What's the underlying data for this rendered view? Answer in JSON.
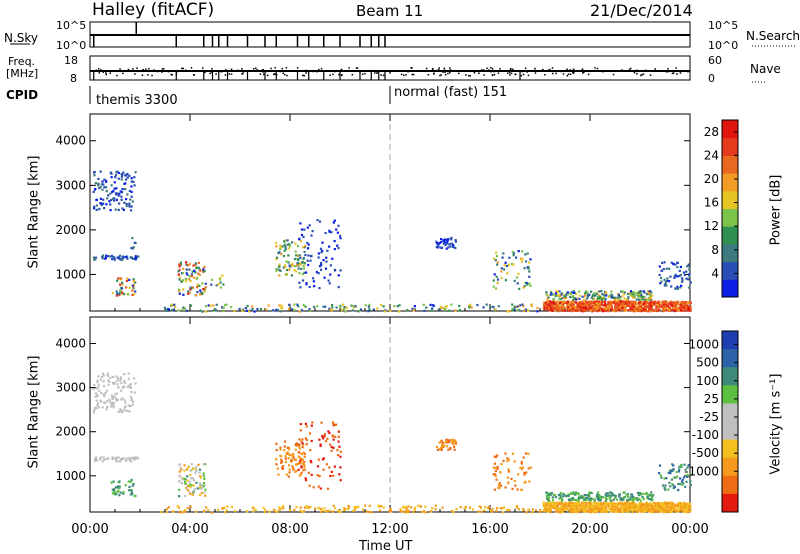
{
  "header": {
    "station": "Halley (fitACF)",
    "beam": "Beam 11",
    "date": "21/Dec/2014"
  },
  "nsky_panel": {
    "left_label": "N.Sky",
    "left_tick_top": "10^5",
    "left_tick_bottom": "10^0",
    "right_label": "N.Search",
    "right_tick_top": "10^5",
    "right_tick_bottom": "10^0"
  },
  "freq_panel": {
    "left_label": "Freq.",
    "left_unit": "[MHz]",
    "left_tick_top": "18",
    "left_tick_bottom": "8",
    "right_label": "Nave",
    "right_tick_top": "60",
    "right_tick_bottom": "0"
  },
  "cpid": {
    "label": "CPID",
    "modes": [
      {
        "name": "themis 3300",
        "start_hour": 0
      },
      {
        "name": "normal (fast) 151",
        "start_hour": 12
      }
    ]
  },
  "x_axis": {
    "label": "Time UT",
    "ticks": [
      "00:00",
      "04:00",
      "08:00",
      "12:00",
      "16:00",
      "20:00",
      "00:00"
    ],
    "tick_hours": [
      0,
      4,
      8,
      12,
      16,
      20,
      24
    ]
  },
  "chart_data": [
    {
      "type": "heatmap",
      "ylabel": "Slant Range [km]",
      "xlim_hours": [
        0,
        24
      ],
      "ylim_km": [
        180,
        4600
      ],
      "yticks": [
        1000,
        2000,
        3000,
        4000
      ],
      "colorbar": {
        "label": "Power [dB]",
        "ticks": [
          "4",
          "8",
          "12",
          "16",
          "20",
          "24",
          "28"
        ],
        "colors": [
          "#0a1ee6",
          "#2a4fb4",
          "#3d7a80",
          "#2f8f4e",
          "#7cc34a",
          "#e6c423",
          "#f29c25",
          "#e8681f",
          "#e53a1c",
          "#e0160f"
        ]
      },
      "clusters": [
        {
          "x": [
            0.1,
            1.8
          ],
          "y": [
            2450,
            3350
          ],
          "n": 120,
          "c": [
            0,
            2
          ]
        },
        {
          "x": [
            0.1,
            1.9
          ],
          "y": [
            1350,
            1450
          ],
          "n": 45,
          "c": [
            0,
            2
          ]
        },
        {
          "x": [
            0.8,
            1.8
          ],
          "y": [
            550,
            950
          ],
          "n": 40,
          "c": [
            0,
            9
          ]
        },
        {
          "x": [
            1.6,
            1.8
          ],
          "y": [
            1600,
            1850
          ],
          "n": 6,
          "c": [
            1,
            3
          ]
        },
        {
          "x": [
            3.5,
            4.6
          ],
          "y": [
            550,
            1300
          ],
          "n": 90,
          "c": [
            0,
            9
          ]
        },
        {
          "x": [
            4.8,
            5.3
          ],
          "y": [
            700,
            1000
          ],
          "n": 10,
          "c": [
            1,
            6
          ]
        },
        {
          "x": [
            7.4,
            8.6
          ],
          "y": [
            1000,
            1800
          ],
          "n": 90,
          "c": [
            1,
            6
          ]
        },
        {
          "x": [
            8.3,
            10.0
          ],
          "y": [
            700,
            2250
          ],
          "n": 80,
          "c": [
            0,
            1
          ]
        },
        {
          "x": [
            13.8,
            14.6
          ],
          "y": [
            1600,
            1850
          ],
          "n": 40,
          "c": [
            0,
            1
          ]
        },
        {
          "x": [
            16.1,
            17.6
          ],
          "y": [
            700,
            1550
          ],
          "n": 60,
          "c": [
            0,
            6
          ]
        },
        {
          "x": [
            18.2,
            22.5
          ],
          "y": [
            450,
            650
          ],
          "n": 200,
          "c": [
            0,
            6
          ]
        },
        {
          "x": [
            22.7,
            24.0
          ],
          "y": [
            700,
            1300
          ],
          "n": 60,
          "c": [
            0,
            2
          ]
        },
        {
          "x": [
            18.1,
            24.0
          ],
          "y": [
            200,
            420
          ],
          "n": 900,
          "c": [
            6,
            9
          ]
        },
        {
          "x": [
            2.8,
            18.0
          ],
          "y": [
            190,
            350
          ],
          "n": 180,
          "c": [
            0,
            6
          ]
        }
      ]
    },
    {
      "type": "heatmap",
      "ylabel": "Slant Range [km]",
      "xlim_hours": [
        0,
        24
      ],
      "ylim_km": [
        180,
        4600
      ],
      "yticks": [
        1000,
        2000,
        3000,
        4000
      ],
      "colorbar": {
        "label": "Velocity [m s⁻¹]",
        "ticks": [
          "1000",
          "500",
          "100",
          "25",
          "-25",
          "-100",
          "-500",
          "-1000"
        ],
        "colors": [
          "#1f3fb0",
          "#2d62a8",
          "#3e8a7a",
          "#5ec040",
          "#bfbfbf",
          "#bfbfbf",
          "#f3c020",
          "#f59a1c",
          "#ef6b14",
          "#e41a10"
        ]
      },
      "clusters": [
        {
          "x": [
            0.1,
            1.8
          ],
          "y": [
            2450,
            3350
          ],
          "n": 120,
          "c": [
            4,
            5
          ]
        },
        {
          "x": [
            0.1,
            1.9
          ],
          "y": [
            1350,
            1450
          ],
          "n": 45,
          "c": [
            4,
            5
          ]
        },
        {
          "x": [
            0.8,
            1.8
          ],
          "y": [
            550,
            950
          ],
          "n": 40,
          "c": [
            2,
            3
          ]
        },
        {
          "x": [
            3.5,
            4.6
          ],
          "y": [
            550,
            1300
          ],
          "n": 90,
          "c": [
            2,
            7
          ]
        },
        {
          "x": [
            7.4,
            8.6
          ],
          "y": [
            1000,
            1800
          ],
          "n": 90,
          "c": [
            7,
            8
          ]
        },
        {
          "x": [
            8.3,
            10.0
          ],
          "y": [
            700,
            2250
          ],
          "n": 80,
          "c": [
            8,
            9
          ]
        },
        {
          "x": [
            13.8,
            14.6
          ],
          "y": [
            1600,
            1850
          ],
          "n": 40,
          "c": [
            7,
            8
          ]
        },
        {
          "x": [
            16.1,
            17.6
          ],
          "y": [
            700,
            1550
          ],
          "n": 60,
          "c": [
            7,
            8
          ]
        },
        {
          "x": [
            18.2,
            22.5
          ],
          "y": [
            450,
            650
          ],
          "n": 200,
          "c": [
            2,
            3
          ]
        },
        {
          "x": [
            22.7,
            24.0
          ],
          "y": [
            700,
            1300
          ],
          "n": 60,
          "c": [
            1,
            3
          ]
        },
        {
          "x": [
            18.1,
            24.0
          ],
          "y": [
            200,
            420
          ],
          "n": 900,
          "c": [
            6,
            7
          ]
        },
        {
          "x": [
            2.8,
            18.0
          ],
          "y": [
            190,
            350
          ],
          "n": 180,
          "c": [
            6,
            7
          ]
        }
      ]
    }
  ]
}
